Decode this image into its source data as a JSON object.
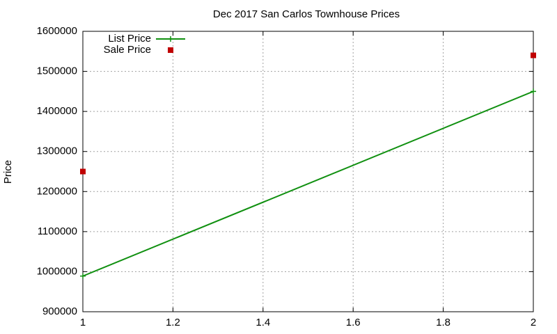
{
  "chart_data": {
    "type": "line",
    "title": "Dec 2017 San Carlos Townhouse Prices",
    "y_label": "Price",
    "x": [
      1,
      2
    ],
    "series": [
      {
        "name": "List Price",
        "color": "#109010",
        "mode": "linespoints",
        "marker": "plus",
        "values": [
          989000,
          1450000
        ]
      },
      {
        "name": "Sale Price",
        "color": "#c00000",
        "mode": "points",
        "marker": "square",
        "values": [
          1250000,
          1540000
        ]
      }
    ],
    "xlim": [
      1,
      2
    ],
    "xticks": [
      1,
      1.2,
      1.4,
      1.6,
      1.8,
      2
    ],
    "ylim": [
      900000,
      1600000
    ],
    "yticks": [
      900000,
      1000000,
      1100000,
      1200000,
      1300000,
      1400000,
      1500000,
      1600000
    ],
    "grid": true,
    "legend_position": "top-left"
  }
}
